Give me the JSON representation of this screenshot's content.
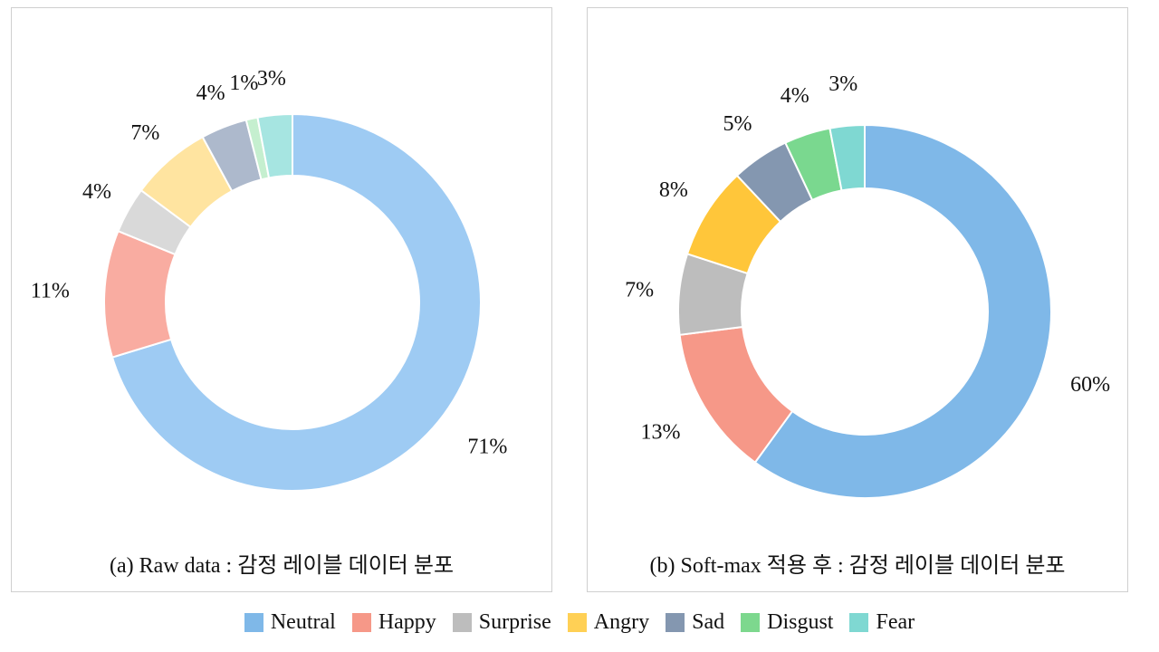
{
  "legend": [
    {
      "label": "Neutral",
      "color": "#7fb8e8"
    },
    {
      "label": "Happy",
      "color": "#f69888"
    },
    {
      "label": "Surprise",
      "color": "#bdbdbd"
    },
    {
      "label": "Angry",
      "color": "#ffd055"
    },
    {
      "label": "Sad",
      "color": "#8497b0"
    },
    {
      "label": "Disgust",
      "color": "#7dd88e"
    },
    {
      "label": "Fear",
      "color": "#7fd8d2"
    }
  ],
  "chart_data": [
    {
      "type": "pie",
      "style": "donut",
      "caption": "(a) Raw data : 감정 레이블 데이터 분포",
      "categories": [
        "Neutral",
        "Happy",
        "Surprise",
        "Angry",
        "Sad",
        "Disgust",
        "Fear"
      ],
      "values": [
        71,
        11,
        4,
        7,
        4,
        1,
        3
      ],
      "labels": [
        "71%",
        "11%",
        "4%",
        "7%",
        "4%",
        "1%",
        "3%"
      ],
      "colors": [
        "#9ecbf3",
        "#f9aca1",
        "#d9d9d9",
        "#ffe4a0",
        "#adb9cc",
        "#c5efcf",
        "#a6e5e1"
      ]
    },
    {
      "type": "pie",
      "style": "donut",
      "caption": "(b) Soft-max 적용 후 : 감정 레이블 데이터 분포",
      "categories": [
        "Neutral",
        "Happy",
        "Surprise",
        "Angry",
        "Sad",
        "Disgust",
        "Fear"
      ],
      "values": [
        60,
        13,
        7,
        8,
        5,
        4,
        3
      ],
      "labels": [
        "60%",
        "13%",
        "7%",
        "8%",
        "5%",
        "4%",
        "3%"
      ],
      "colors": [
        "#7fb8e8",
        "#f69888",
        "#bdbdbd",
        "#ffc63a",
        "#8497b0",
        "#7ad88f",
        "#7fd8d2"
      ]
    }
  ]
}
